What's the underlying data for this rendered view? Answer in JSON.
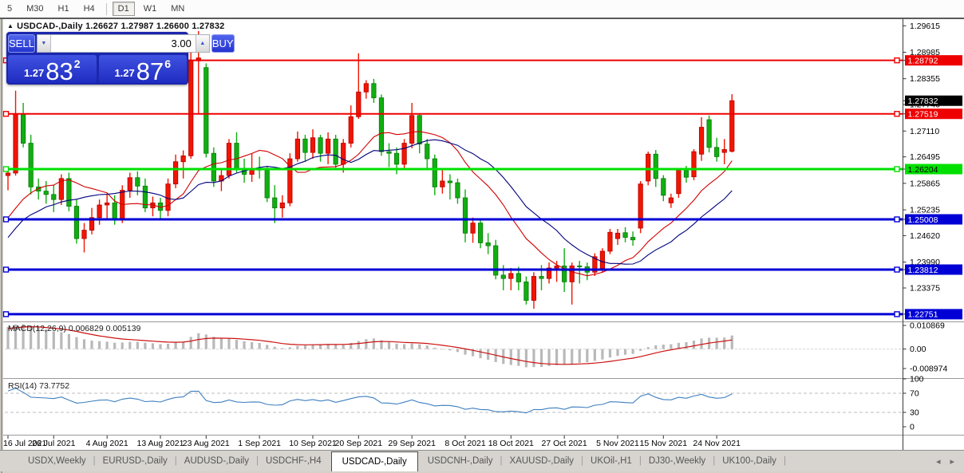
{
  "ui": {
    "toolbar": {
      "timeframes": [
        {
          "label": "5",
          "active": false
        },
        {
          "label": "M30",
          "active": false
        },
        {
          "label": "H1",
          "active": false
        },
        {
          "label": "H4",
          "active": false
        },
        {
          "label": "D1",
          "active": true
        },
        {
          "label": "W1",
          "active": false
        },
        {
          "label": "MN",
          "active": false
        }
      ]
    },
    "title": {
      "marker": "▲",
      "symbol": "USDCAD-,Daily",
      "ohlc": "1.26627 1.27987 1.26600 1.27832"
    },
    "trade_panel": {
      "sell": "SELL",
      "buy": "BUY",
      "volume": "3.00",
      "down_arrow": "▼",
      "up_arrow": "▲",
      "sell_price": {
        "base": "1.27",
        "big": "83",
        "sup": "2"
      },
      "buy_price": {
        "base": "1.27",
        "big": "87",
        "sup": "6"
      }
    },
    "tabs": [
      {
        "label": "USDX,Weekly",
        "active": false
      },
      {
        "label": "EURUSD-,Daily",
        "active": false
      },
      {
        "label": "AUDUSD-,Daily",
        "active": false
      },
      {
        "label": "USDCHF-,H4",
        "active": false
      },
      {
        "label": "USDCAD-,Daily",
        "active": true
      },
      {
        "label": "USDCNH-,Daily",
        "active": false
      },
      {
        "label": "XAUUSD-,Daily",
        "active": false
      },
      {
        "label": "UKOil-,H1",
        "active": false
      },
      {
        "label": "DJ30-,Weekly",
        "active": false
      },
      {
        "label": "UK100-,Daily",
        "active": false
      }
    ],
    "tab_arrows": {
      "left": "◂",
      "right": "▸"
    }
  },
  "chart_data": {
    "type": "candlestick",
    "symbol": "USDCAD-",
    "timeframe": "Daily",
    "current_bar": {
      "open": 1.26627,
      "high": 1.27987,
      "low": 1.266,
      "close": 1.27832
    },
    "style": {
      "bull_fill": "#f11500",
      "bull_stroke": "#b40000",
      "bear_fill": "#11ae11",
      "bear_stroke": "#0a7a0a"
    },
    "candles": [
      [
        1.2605,
        1.2622,
        1.257,
        1.2611
      ],
      [
        1.2611,
        1.2807,
        1.2605,
        1.2752
      ],
      [
        1.2752,
        1.2778,
        1.2672,
        1.2682
      ],
      [
        1.2682,
        1.2702,
        1.256,
        1.2578
      ],
      [
        1.2578,
        1.2598,
        1.2548,
        1.2568
      ],
      [
        1.2568,
        1.2592,
        1.2538,
        1.256
      ],
      [
        1.256,
        1.2582,
        1.2518,
        1.2548
      ],
      [
        1.2548,
        1.2608,
        1.2535,
        1.2598
      ],
      [
        1.2598,
        1.2612,
        1.252,
        1.2532
      ],
      [
        1.2532,
        1.2548,
        1.2443,
        1.2455
      ],
      [
        1.2455,
        1.2492,
        1.2422,
        1.2475
      ],
      [
        1.2475,
        1.2528,
        1.2465,
        1.2505
      ],
      [
        1.2505,
        1.2548,
        1.2488,
        1.2535
      ],
      [
        1.2535,
        1.2562,
        1.2498,
        1.254
      ],
      [
        1.254,
        1.2558,
        1.2488,
        1.2502
      ],
      [
        1.2502,
        1.2582,
        1.2492,
        1.257
      ],
      [
        1.257,
        1.2612,
        1.2552,
        1.26
      ],
      [
        1.26,
        1.2615,
        1.2558,
        1.258
      ],
      [
        1.258,
        1.2598,
        1.2518,
        1.2528
      ],
      [
        1.2528,
        1.2555,
        1.2508,
        1.254
      ],
      [
        1.254,
        1.2552,
        1.2502,
        1.2522
      ],
      [
        1.2522,
        1.2598,
        1.2508,
        1.2585
      ],
      [
        1.2585,
        1.2655,
        1.2575,
        1.2638
      ],
      [
        1.2638,
        1.2665,
        1.2598,
        1.2652
      ],
      [
        1.2652,
        1.2898,
        1.2645,
        1.2878
      ],
      [
        1.2878,
        1.2949,
        1.2752,
        1.2885
      ],
      [
        1.2862,
        1.2872,
        1.2648,
        1.2658
      ],
      [
        1.2658,
        1.2672,
        1.2578,
        1.2592
      ],
      [
        1.2592,
        1.2622,
        1.2568,
        1.2605
      ],
      [
        1.2605,
        1.2692,
        1.2598,
        1.2682
      ],
      [
        1.2682,
        1.2708,
        1.2612,
        1.2622
      ],
      [
        1.2622,
        1.2645,
        1.2588,
        1.2608
      ],
      [
        1.2608,
        1.2658,
        1.259,
        1.2622
      ],
      [
        1.2622,
        1.265,
        1.2598,
        1.2618
      ],
      [
        1.2618,
        1.2628,
        1.2542,
        1.2552
      ],
      [
        1.2552,
        1.2582,
        1.2492,
        1.2528
      ],
      [
        1.2528,
        1.2558,
        1.2505,
        1.254
      ],
      [
        1.254,
        1.2658,
        1.2532,
        1.2645
      ],
      [
        1.2645,
        1.271,
        1.2638,
        1.2692
      ],
      [
        1.2692,
        1.2702,
        1.2638,
        1.266
      ],
      [
        1.266,
        1.2715,
        1.2645,
        1.2695
      ],
      [
        1.2695,
        1.2702,
        1.2638,
        1.2658
      ],
      [
        1.2658,
        1.2708,
        1.2632,
        1.2692
      ],
      [
        1.2692,
        1.2702,
        1.2618,
        1.2632
      ],
      [
        1.2632,
        1.2692,
        1.2612,
        1.2682
      ],
      [
        1.2682,
        1.2772,
        1.2672,
        1.2745
      ],
      [
        1.2745,
        1.2896,
        1.274,
        1.2804
      ],
      [
        1.2804,
        1.2832,
        1.2788,
        1.2824
      ],
      [
        1.2824,
        1.2835,
        1.2778,
        1.279
      ],
      [
        1.279,
        1.2798,
        1.2652,
        1.2662
      ],
      [
        1.2662,
        1.2682,
        1.2625,
        1.2658
      ],
      [
        1.2658,
        1.2672,
        1.2608,
        1.2632
      ],
      [
        1.2632,
        1.2692,
        1.2618,
        1.2682
      ],
      [
        1.2682,
        1.2778,
        1.267,
        1.2748
      ],
      [
        1.2748,
        1.2752,
        1.2658,
        1.268
      ],
      [
        1.268,
        1.2692,
        1.2618,
        1.2645
      ],
      [
        1.2645,
        1.2655,
        1.2558,
        1.2578
      ],
      [
        1.2578,
        1.2622,
        1.2562,
        1.2592
      ],
      [
        1.2592,
        1.2608,
        1.2548,
        1.2588
      ],
      [
        1.2588,
        1.2598,
        1.2538,
        1.2552
      ],
      [
        1.2552,
        1.2572,
        1.2446,
        1.2468
      ],
      [
        1.2468,
        1.2505,
        1.2445,
        1.2492
      ],
      [
        1.2492,
        1.2502,
        1.2432,
        1.2445
      ],
      [
        1.2445,
        1.2468,
        1.2418,
        1.2438
      ],
      [
        1.2438,
        1.2452,
        1.2358,
        1.2368
      ],
      [
        1.2368,
        1.2392,
        1.2332,
        1.236
      ],
      [
        1.236,
        1.2385,
        1.2332,
        1.2372
      ],
      [
        1.2372,
        1.2388,
        1.2332,
        1.2352
      ],
      [
        1.2352,
        1.2365,
        1.2298,
        1.2308
      ],
      [
        1.2308,
        1.2375,
        1.2288,
        1.2365
      ],
      [
        1.2365,
        1.2392,
        1.2332,
        1.236
      ],
      [
        1.236,
        1.2398,
        1.2348,
        1.2385
      ],
      [
        1.2385,
        1.2402,
        1.2352,
        1.239
      ],
      [
        1.239,
        1.2432,
        1.2328,
        1.2352
      ],
      [
        1.2352,
        1.2398,
        1.2298,
        1.239
      ],
      [
        1.239,
        1.2402,
        1.2348,
        1.2388
      ],
      [
        1.2388,
        1.2398,
        1.2356,
        1.2375
      ],
      [
        1.2375,
        1.242,
        1.2366,
        1.2412
      ],
      [
        1.2384,
        1.2432,
        1.2374,
        1.2425
      ],
      [
        1.2425,
        1.2478,
        1.2418,
        1.247
      ],
      [
        1.2455,
        1.2478,
        1.244,
        1.2468
      ],
      [
        1.2469,
        1.2482,
        1.2446,
        1.2458
      ],
      [
        1.2458,
        1.2472,
        1.2438,
        1.2452
      ],
      [
        1.248,
        1.2592,
        1.2468,
        1.2585
      ],
      [
        1.2592,
        1.2662,
        1.2582,
        1.2656
      ],
      [
        1.2656,
        1.2666,
        1.2578,
        1.2598
      ],
      [
        1.2598,
        1.2606,
        1.2544,
        1.2558
      ],
      [
        1.254,
        1.2562,
        1.2528,
        1.2552
      ],
      [
        1.2562,
        1.2622,
        1.2552,
        1.2618
      ],
      [
        1.2618,
        1.2628,
        1.2588,
        1.2601
      ],
      [
        1.2602,
        1.2668,
        1.2594,
        1.2662
      ],
      [
        1.2656,
        1.2744,
        1.264,
        1.272
      ],
      [
        1.2738,
        1.2748,
        1.266,
        1.2672
      ],
      [
        1.2672,
        1.2695,
        1.2638,
        1.265
      ],
      [
        1.266,
        1.2692,
        1.2632,
        1.2667
      ],
      [
        1.26627,
        1.27987,
        1.266,
        1.27832
      ]
    ],
    "indicator_warmup_closes": [
      1.2095,
      1.2075,
      1.2108,
      1.215,
      1.221,
      1.2188,
      1.2272,
      1.2308,
      1.2282,
      1.2335,
      1.2392,
      1.2365,
      1.2442,
      1.2468,
      1.2452,
      1.2405,
      1.2382,
      1.2432,
      1.2482,
      1.2522,
      1.2465,
      1.2502,
      1.2552,
      1.2588,
      1.2562,
      1.2602
    ],
    "moving_averages": [
      {
        "period": 13,
        "color": "#d10000"
      },
      {
        "period": 20,
        "color": "#00007e"
      }
    ],
    "x_axis": {
      "ticks": [
        {
          "bar": 0,
          "label": "16 Jul 2021"
        },
        {
          "bar": 6,
          "label": "26 Jul 2021"
        },
        {
          "bar": 13,
          "label": "4 Aug 2021"
        },
        {
          "bar": 20,
          "label": "13 Aug 2021"
        },
        {
          "bar": 26,
          "label": "23 Aug 2021"
        },
        {
          "bar": 33,
          "label": "1 Sep 2021"
        },
        {
          "bar": 40,
          "label": "10 Sep 2021"
        },
        {
          "bar": 46,
          "label": "20 Sep 2021"
        },
        {
          "bar": 53,
          "label": "29 Sep 2021"
        },
        {
          "bar": 60,
          "label": "8 Oct 2021"
        },
        {
          "bar": 66,
          "label": "18 Oct 2021"
        },
        {
          "bar": 73,
          "label": "27 Oct 2021"
        },
        {
          "bar": 80,
          "label": "5 Nov 2021"
        },
        {
          "bar": 86,
          "label": "15 Nov 2021"
        },
        {
          "bar": 93,
          "label": "24 Nov 2021"
        }
      ]
    },
    "y_axis": {
      "ticks": [
        {
          "price": 1.29615,
          "label": "1.29615"
        },
        {
          "price": 1.28985,
          "label": "1.28985"
        },
        {
          "price": 1.28355,
          "label": "1.28355"
        },
        {
          "price": 1.2774,
          "label": "1.27740"
        },
        {
          "price": 1.2711,
          "label": "1.27110"
        },
        {
          "price": 1.26495,
          "label": "1.26495"
        },
        {
          "price": 1.25865,
          "label": "1.25865"
        },
        {
          "price": 1.25235,
          "label": "1.25235"
        },
        {
          "price": 1.2462,
          "label": "1.24620"
        },
        {
          "price": 1.2399,
          "label": "1.23990"
        },
        {
          "price": 1.23375,
          "label": "1.23375"
        }
      ]
    },
    "levels": [
      {
        "price": 1.28792,
        "label": "1.28792",
        "color": "#ef0000",
        "text_color": "#ffffff",
        "width": 2
      },
      {
        "price": 1.27519,
        "label": "1.27519",
        "color": "#ef0000",
        "text_color": "#ffffff",
        "width": 2
      },
      {
        "price": 1.26204,
        "label": "1.26204",
        "color": "#00e000",
        "text_color": "#000000",
        "width": 3
      },
      {
        "price": 1.25008,
        "label": "1.25008",
        "color": "#0000d6",
        "text_color": "#ffffff",
        "width": 3
      },
      {
        "price": 1.23812,
        "label": "1.23812",
        "color": "#0000d6",
        "text_color": "#ffffff",
        "width": 3
      },
      {
        "price": 1.22751,
        "label": "1.22751",
        "color": "#0000d6",
        "text_color": "#ffffff",
        "width": 3
      }
    ],
    "current_price": {
      "value": 1.27832,
      "label": "1.27832",
      "bg": "#000000",
      "text_color": "#ffffff"
    },
    "macd": {
      "label": "MACD(12,26,9)",
      "current": "0.006829 0.005139",
      "fast": 12,
      "slow": 26,
      "signal": 9,
      "bar_color": "#b9b9b9",
      "signal_color": "#cc1111",
      "axis": [
        {
          "value": 0.010869,
          "label": "0.010869"
        },
        {
          "value": 0,
          "label": "0.00"
        },
        {
          "value": -0.008974,
          "label": "-0.008974"
        }
      ]
    },
    "rsi": {
      "label": "RSI(14)",
      "current": "73.7752",
      "period": 14,
      "color": "#3e7fc1",
      "level_lines": [
        70,
        30
      ],
      "axis": [
        {
          "value": 100,
          "label": "100"
        },
        {
          "value": 70,
          "label": "70"
        },
        {
          "value": 30,
          "label": "30"
        },
        {
          "value": 0,
          "label": "0"
        }
      ]
    }
  }
}
